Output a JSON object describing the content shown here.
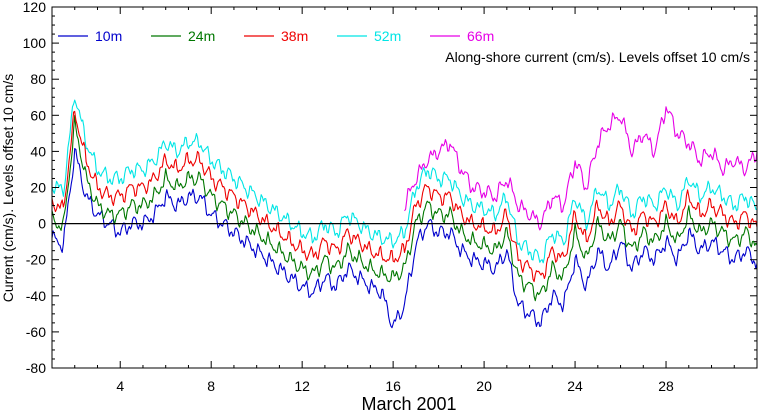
{
  "chart_data": {
    "type": "line",
    "title": "",
    "xlabel": "March 2001",
    "ylabel": "Current (cm/s). Levels offset 10 cm/s",
    "annotation": "Along-shore current (cm/s). Levels offset 10 cm/s",
    "xlim": [
      1,
      32
    ],
    "ylim": [
      -80,
      120
    ],
    "x_ticks": [
      4,
      8,
      12,
      16,
      20,
      24,
      28
    ],
    "x_tick_labels": [
      "4",
      "8",
      "12",
      "16",
      "20",
      "24",
      "28"
    ],
    "y_ticks": [
      -80,
      -60,
      -40,
      -20,
      0,
      20,
      40,
      60,
      80,
      100,
      120
    ],
    "y_tick_labels": [
      "-80",
      "-60",
      "-40",
      "-20",
      "0",
      "20",
      "40",
      "60",
      "80",
      "100",
      "120"
    ],
    "zero_line": true,
    "grid": false,
    "legend_position": "top-left",
    "series": [
      {
        "name": "10m",
        "color": "#0000cc",
        "x": [
          1,
          1.5,
          2,
          2.5,
          3,
          3.5,
          4,
          4.5,
          5,
          5.5,
          6,
          6.5,
          7,
          7.5,
          8,
          8.5,
          9,
          9.5,
          10,
          10.5,
          11,
          11.5,
          12,
          12.5,
          13,
          13.5,
          14,
          14.5,
          15,
          15.5,
          16,
          16.5,
          17,
          17.5,
          18,
          18.5,
          19,
          19.5,
          20,
          20.5,
          21,
          21.5,
          22,
          22.5,
          23,
          23.5,
          24,
          24.5,
          25,
          25.5,
          26,
          26.5,
          27,
          27.5,
          28,
          28.5,
          29,
          29.5,
          30,
          30.5,
          31,
          31.5,
          32
        ],
        "values": [
          -8,
          -12,
          40,
          15,
          5,
          0,
          -5,
          0,
          0,
          5,
          15,
          10,
          15,
          15,
          5,
          0,
          -5,
          -10,
          -15,
          -20,
          -25,
          -30,
          -35,
          -38,
          -30,
          -35,
          -25,
          -30,
          -35,
          -38,
          -57,
          -45,
          -12,
          0,
          -5,
          -5,
          -15,
          -20,
          -22,
          -25,
          -15,
          -45,
          -50,
          -55,
          -40,
          -45,
          -20,
          -35,
          -15,
          -25,
          -10,
          -25,
          -15,
          -20,
          -10,
          -20,
          -5,
          -15,
          -10,
          -15,
          -20,
          -15,
          -22
        ]
      },
      {
        "name": "24m",
        "color": "#007700",
        "x": [
          1,
          1.5,
          2,
          2.5,
          3,
          3.5,
          4,
          4.5,
          5,
          5.5,
          6,
          6.5,
          7,
          7.5,
          8,
          8.5,
          9,
          9.5,
          10,
          10.5,
          11,
          11.5,
          12,
          12.5,
          13,
          13.5,
          14,
          14.5,
          15,
          15.5,
          16,
          16.5,
          17,
          17.5,
          18,
          18.5,
          19,
          19.5,
          20,
          20.5,
          21,
          21.5,
          22,
          22.5,
          23,
          23.5,
          24,
          24.5,
          25,
          25.5,
          26,
          26.5,
          27,
          27.5,
          28,
          28.5,
          29,
          29.5,
          30,
          30.5,
          31,
          31.5,
          32
        ],
        "values": [
          2,
          -2,
          55,
          25,
          10,
          5,
          5,
          10,
          10,
          15,
          25,
          20,
          25,
          25,
          15,
          10,
          5,
          0,
          -5,
          -10,
          -15,
          -20,
          -25,
          -28,
          -20,
          -25,
          -15,
          -20,
          -25,
          -28,
          -30,
          -25,
          0,
          10,
          5,
          5,
          -5,
          -10,
          -12,
          -15,
          -5,
          -30,
          -35,
          -40,
          -25,
          -30,
          -5,
          -20,
          0,
          -10,
          0,
          -15,
          -5,
          -10,
          0,
          -10,
          5,
          -5,
          0,
          -5,
          -10,
          -5,
          -12
        ]
      },
      {
        "name": "38m",
        "color": "#ee0000",
        "x": [
          1,
          1.5,
          2,
          2.5,
          3,
          3.5,
          4,
          4.5,
          5,
          5.5,
          6,
          6.5,
          7,
          7.5,
          8,
          8.5,
          9,
          9.5,
          10,
          10.5,
          11,
          11.5,
          12,
          12.5,
          13,
          13.5,
          14,
          14.5,
          15,
          15.5,
          16,
          16.5,
          17,
          17.5,
          18,
          18.5,
          19,
          19.5,
          20,
          20.5,
          21,
          21.5,
          22,
          22.5,
          23,
          23.5,
          24,
          24.5,
          25,
          25.5,
          26,
          26.5,
          27,
          27.5,
          28,
          28.5,
          29,
          29.5,
          30,
          30.5,
          31,
          31.5,
          32
        ],
        "values": [
          12,
          8,
          62,
          35,
          20,
          15,
          15,
          20,
          20,
          25,
          35,
          30,
          35,
          35,
          25,
          20,
          15,
          10,
          5,
          0,
          -5,
          -10,
          -15,
          -18,
          -10,
          -15,
          -5,
          -10,
          -15,
          -18,
          -20,
          -15,
          10,
          20,
          15,
          15,
          5,
          0,
          -2,
          -5,
          5,
          -20,
          -25,
          -30,
          -15,
          -20,
          5,
          -10,
          10,
          0,
          10,
          -5,
          5,
          0,
          10,
          0,
          15,
          5,
          10,
          5,
          0,
          5,
          -2
        ]
      },
      {
        "name": "52m",
        "color": "#00e5e5",
        "x": [
          1,
          1.5,
          2,
          2.5,
          3,
          3.5,
          4,
          4.5,
          5,
          5.5,
          6,
          6.5,
          7,
          7.5,
          8,
          8.5,
          9,
          9.5,
          10,
          10.5,
          11,
          11.5,
          12,
          12.5,
          13,
          13.5,
          14,
          14.5,
          15,
          15.5,
          16,
          16.5,
          17,
          17.5,
          18,
          18.5,
          19,
          19.5,
          20,
          20.5,
          21,
          21.5,
          22,
          22.5,
          23,
          23.5,
          24,
          24.5,
          25,
          25.5,
          26,
          26.5,
          27,
          27.5,
          28,
          28.5,
          29,
          29.5,
          30,
          30.5,
          31,
          31.5,
          32
        ],
        "values": [
          22,
          18,
          72,
          45,
          30,
          25,
          25,
          30,
          30,
          35,
          45,
          40,
          45,
          45,
          35,
          30,
          25,
          20,
          15,
          10,
          5,
          0,
          -5,
          -8,
          0,
          -5,
          5,
          0,
          -5,
          -8,
          -10,
          -5,
          20,
          30,
          25,
          25,
          15,
          10,
          8,
          5,
          15,
          -10,
          -15,
          -20,
          -5,
          -10,
          15,
          0,
          20,
          10,
          20,
          5,
          15,
          10,
          20,
          10,
          25,
          15,
          20,
          15,
          10,
          15,
          8
        ]
      },
      {
        "name": "66m",
        "color": "#e600e6",
        "x": [
          16.5,
          17,
          17.5,
          18,
          18.5,
          19,
          19.5,
          20,
          20.5,
          21,
          21.5,
          22,
          22.5,
          23,
          23.5,
          24,
          24.5,
          25,
          25.5,
          26,
          26.5,
          27,
          27.5,
          28,
          28.5,
          29,
          29.5,
          30,
          30.5,
          31,
          31.5,
          32
        ],
        "values": [
          10,
          25,
          35,
          40,
          45,
          30,
          20,
          18,
          15,
          25,
          10,
          5,
          0,
          15,
          10,
          35,
          20,
          45,
          55,
          60,
          40,
          50,
          40,
          65,
          50,
          45,
          35,
          40,
          30,
          35,
          30,
          40
        ]
      }
    ]
  }
}
